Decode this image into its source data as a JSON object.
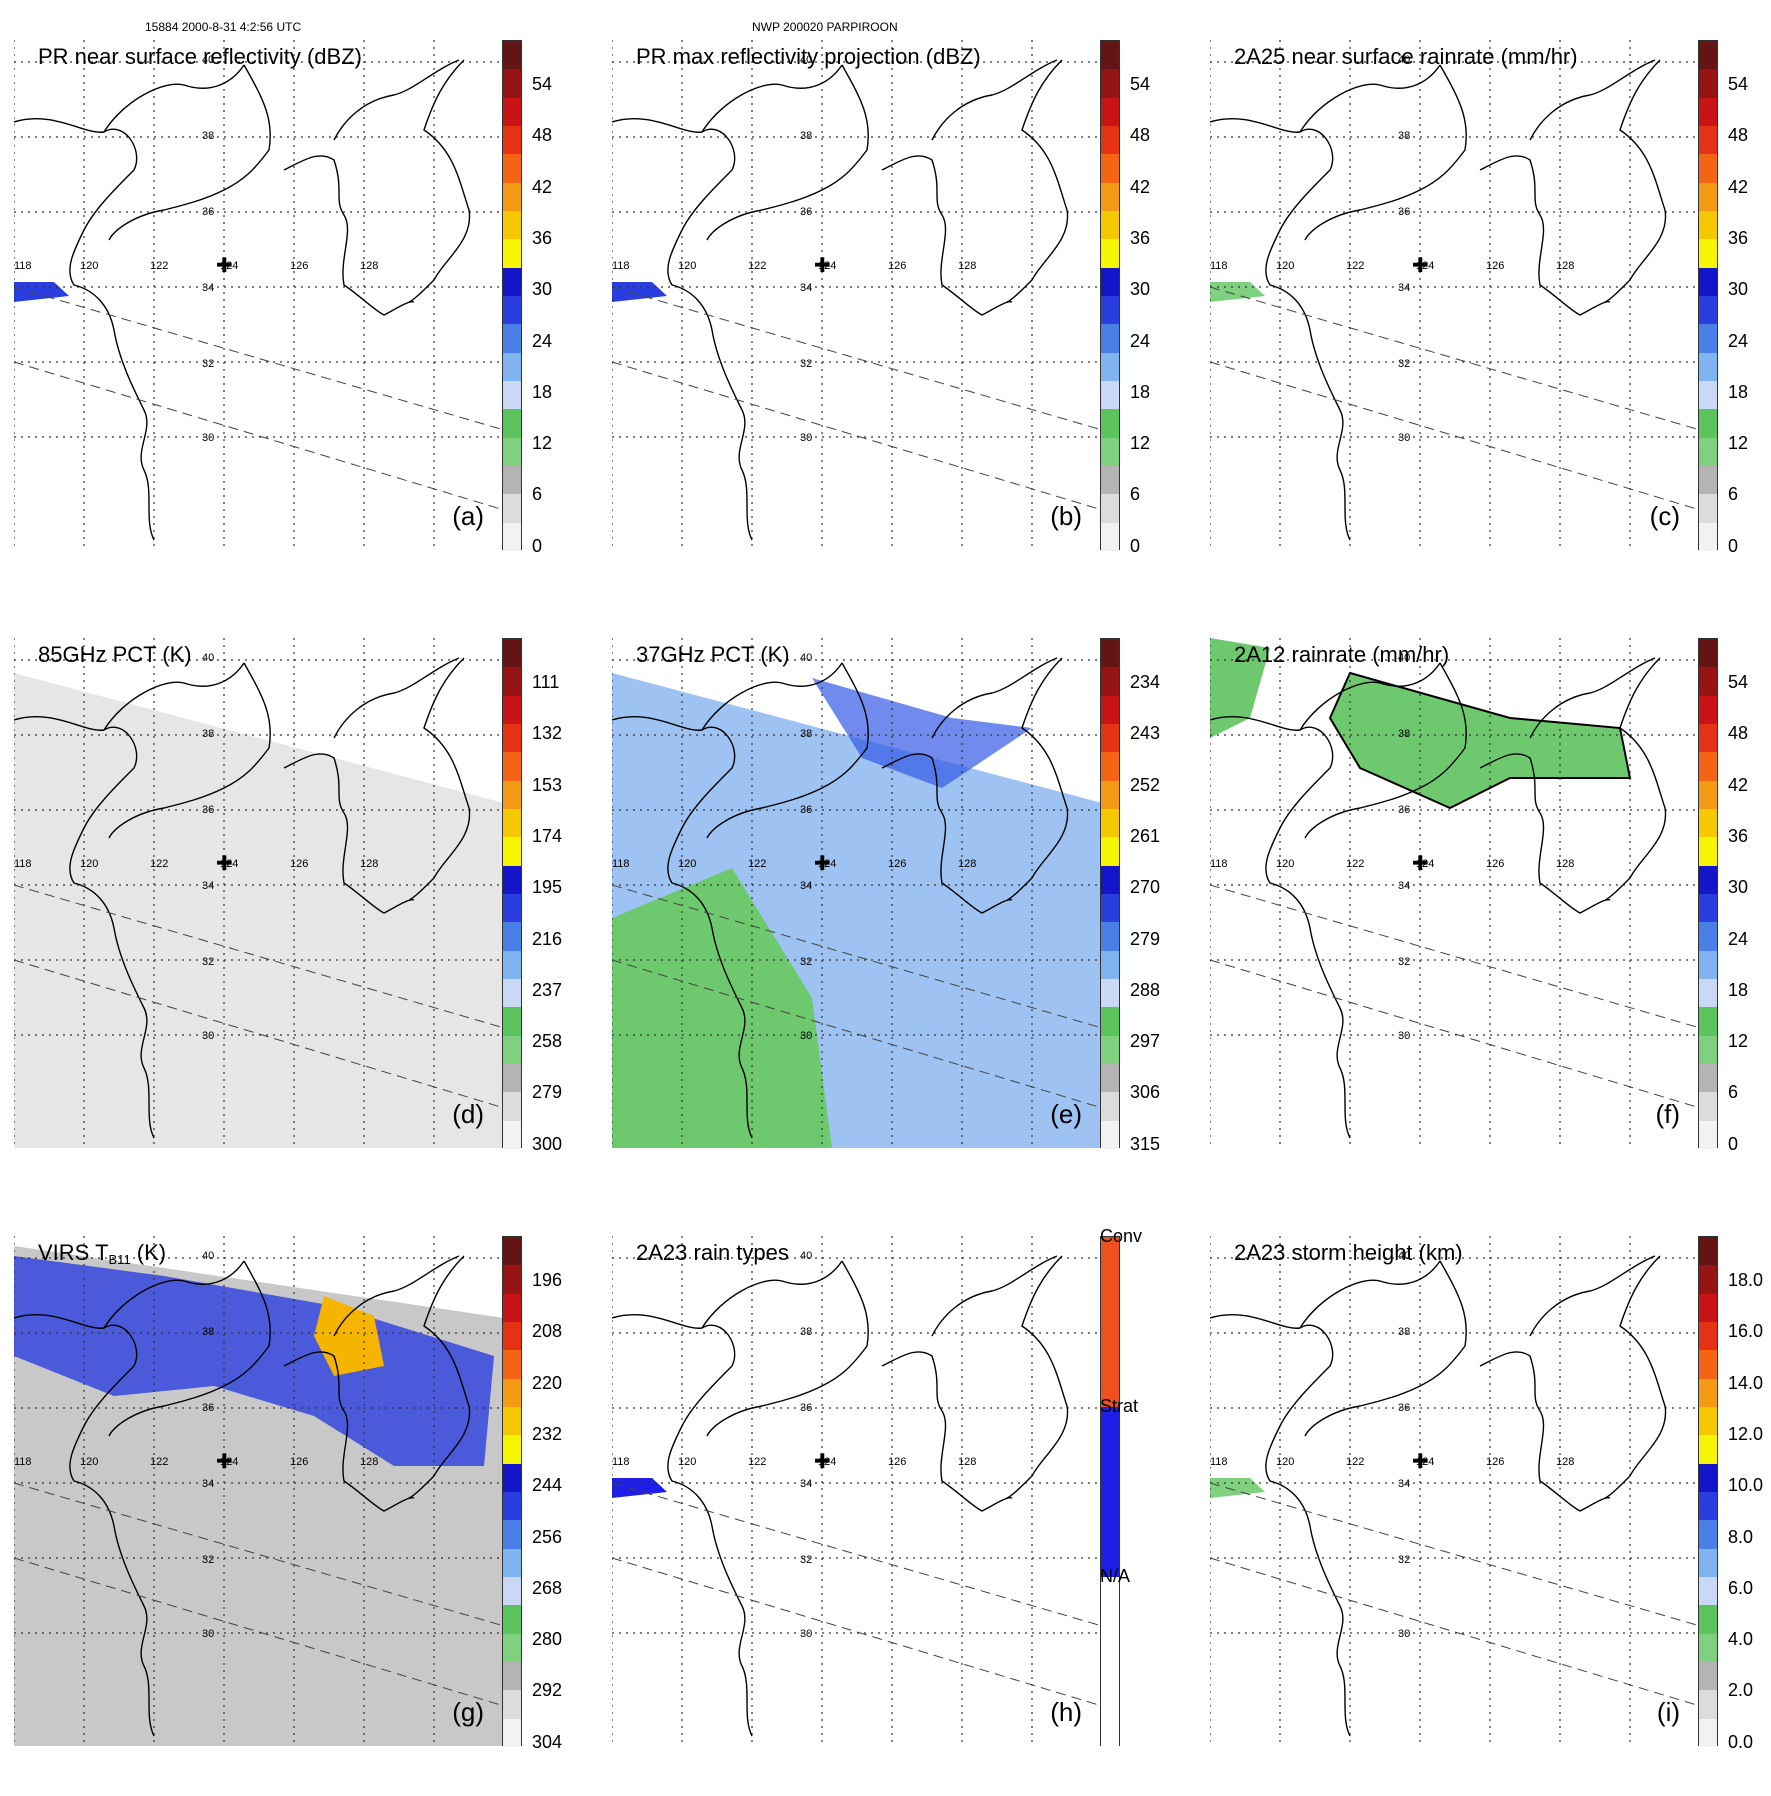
{
  "header": {
    "left": "15884 2000-8-31 4:2:56 UTC",
    "center": "NWP 200020 PARPIROON"
  },
  "map_grid": {
    "lat_labels": [
      "40",
      "38",
      "36",
      "34",
      "32",
      "30"
    ],
    "lon_labels": [
      "118",
      "120",
      "122",
      "124",
      "126",
      "128"
    ]
  },
  "panels": [
    {
      "id": "a",
      "title": "PR near surface reflectivity (dBZ)",
      "label": "(a)",
      "ticks": [
        "54",
        "48",
        "42",
        "36",
        "30",
        "24",
        "18",
        "12",
        "6",
        "0"
      ]
    },
    {
      "id": "b",
      "title": "PR max reflectivity projection (dBZ)",
      "label": "(b)",
      "ticks": [
        "54",
        "48",
        "42",
        "36",
        "30",
        "24",
        "18",
        "12",
        "6",
        "0"
      ]
    },
    {
      "id": "c",
      "title": "2A25 near surface rainrate (mm/hr)",
      "label": "(c)",
      "ticks": [
        "54",
        "48",
        "42",
        "36",
        "30",
        "24",
        "18",
        "12",
        "6",
        "0"
      ]
    },
    {
      "id": "d",
      "title": "85GHz PCT (K)",
      "label": "(d)",
      "ticks": [
        "111",
        "132",
        "153",
        "174",
        "195",
        "216",
        "237",
        "258",
        "279",
        "300"
      ]
    },
    {
      "id": "e",
      "title": "37GHz PCT (K)",
      "label": "(e)",
      "ticks": [
        "234",
        "243",
        "252",
        "261",
        "270",
        "279",
        "288",
        "297",
        "306",
        "315"
      ]
    },
    {
      "id": "f",
      "title": "2A12 rainrate (mm/hr)",
      "label": "(f)",
      "ticks": [
        "54",
        "48",
        "42",
        "36",
        "30",
        "24",
        "18",
        "12",
        "6",
        "0"
      ]
    },
    {
      "id": "g",
      "title_main": "VIRS T",
      "title_sub": "B11",
      "title_tail": " (K)",
      "label": "(g)",
      "ticks": [
        "196",
        "208",
        "220",
        "232",
        "244",
        "256",
        "268",
        "280",
        "292",
        "304"
      ]
    },
    {
      "id": "h",
      "title": "2A23 rain types",
      "label": "(h)",
      "ticks": [
        "Conv",
        "Strat",
        "N/A"
      ]
    },
    {
      "id": "i",
      "title": "2A23 storm height (km)",
      "label": "(i)",
      "ticks": [
        "18.0",
        "16.0",
        "14.0",
        "12.0",
        "10.0",
        "8.0",
        "6.0",
        "4.0",
        "2.0",
        "0.0"
      ]
    }
  ],
  "colors": {
    "scale": [
      "#f2f2f2",
      "#dcdcdc",
      "#b4b4b4",
      "#7fd17f",
      "#5cc45c",
      "#c8d8f5",
      "#7fb4f0",
      "#4b7fe8",
      "#2a3ee0",
      "#1414c8",
      "#f5f500",
      "#f5c800",
      "#f59a14",
      "#f56414",
      "#e63214",
      "#c81414",
      "#961414",
      "#641414"
    ],
    "rain_types": {
      "conv": "#f0501e",
      "strat": "#1e1ee6",
      "na": "#ffffff"
    }
  }
}
